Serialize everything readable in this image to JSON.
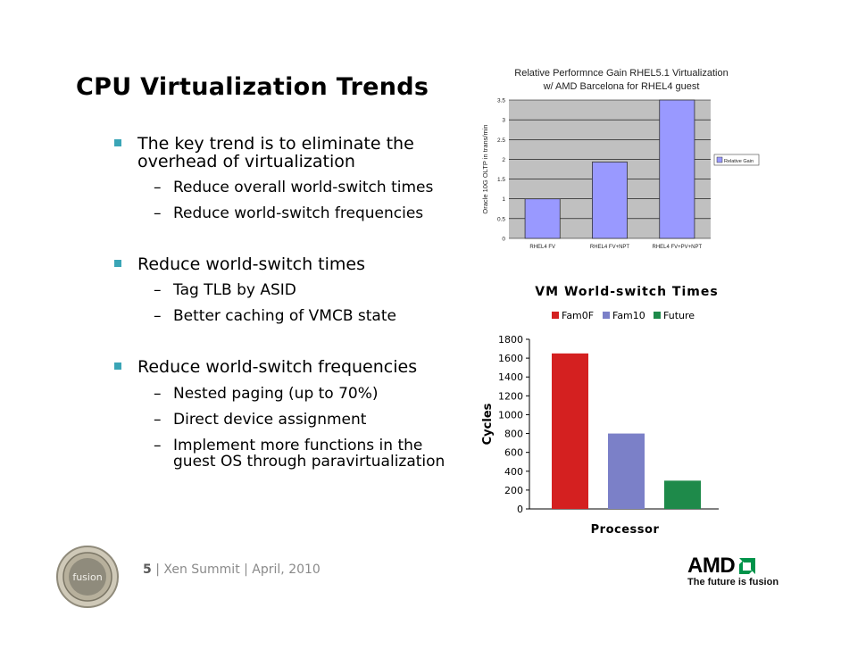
{
  "slide": {
    "title": "CPU Virtualization Trends",
    "bullets": [
      {
        "text": "The key trend is to eliminate the",
        "text2": "overhead of virtualization",
        "subs": [
          "Reduce overall world-switch times",
          "Reduce world-switch frequencies"
        ]
      },
      {
        "text": "Reduce world-switch times",
        "subs": [
          "Tag TLB by ASID",
          "Better caching of VMCB state"
        ]
      },
      {
        "text": "Reduce world-switch frequencies",
        "subs": [
          "Nested paging (up to 70%)",
          "Direct device assignment",
          "Implement more functions in the"
        ],
        "sub_cont": "guest OS through paravirtualization"
      }
    ],
    "dash": "–"
  },
  "footer": {
    "page": "5",
    "sep": "|",
    "text": "Xen Summit | April, 2010",
    "logo_text": "fusion",
    "brand": "AMD",
    "tagline": "The future is fusion"
  },
  "chart_data": [
    {
      "type": "bar",
      "title": "Relative Performnce Gain RHEL5.1 Virtualization",
      "subtitle": "w/ AMD Barcelona for RHEL4 guest",
      "ylabel": "Oracle 10G OLTP in trans/min",
      "xlabel": "",
      "categories": [
        "RHEL4 FV",
        "RHEL4 FV+NPT",
        "RHEL4 FV+PV+NPT"
      ],
      "series": [
        {
          "name": "Relative Gain",
          "values": [
            1.0,
            1.93,
            3.5
          ]
        }
      ],
      "ylim": [
        0,
        3.5
      ],
      "yticks": [
        "0",
        "0.5",
        "1",
        "1.5",
        "2",
        "2.5",
        "3",
        "3.5"
      ],
      "grid": true,
      "legend": "right",
      "colors": {
        "bar": "#9999ff",
        "plot_bg": "#c0c0c0"
      }
    },
    {
      "type": "bar",
      "title": "VM World-switch Times",
      "xlabel": "Processor",
      "ylabel": "Cycles",
      "categories": [
        ""
      ],
      "series": [
        {
          "name": "Fam0F",
          "values": [
            1650
          ],
          "color": "#d42020"
        },
        {
          "name": "Fam10",
          "values": [
            800
          ],
          "color": "#7b80c8"
        },
        {
          "name": "Future",
          "values": [
            300
          ],
          "color": "#1e8a4a"
        }
      ],
      "ylim": [
        0,
        1800
      ],
      "yticks": [
        "0",
        "200",
        "400",
        "600",
        "800",
        "1000",
        "1200",
        "1400",
        "1600",
        "1800"
      ],
      "grid": false,
      "legend": "top"
    }
  ]
}
